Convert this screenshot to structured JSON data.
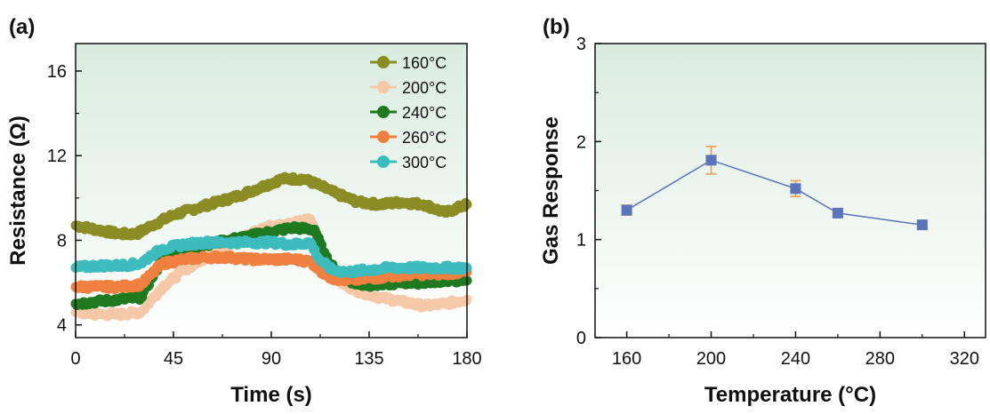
{
  "chart_data": [
    {
      "panel_label": "(a)",
      "type": "line",
      "title": "",
      "xlabel": "Time (s)",
      "ylabel": "Resistance (Ω)",
      "xlim": [
        0,
        180
      ],
      "ylim": [
        3.4,
        17.3
      ],
      "xticks": [
        "0",
        "45",
        "90",
        "135",
        "180"
      ],
      "yticks": [
        "4",
        "8",
        "12",
        "16"
      ],
      "legend_position": "top-right",
      "background": "gradient-green-to-white",
      "series": [
        {
          "name": "160°C",
          "color": "#8b8c24",
          "x": [
            0,
            10,
            20,
            28,
            35,
            45,
            55,
            65,
            75,
            85,
            95,
            105,
            112,
            120,
            130,
            140,
            150,
            160,
            170,
            180
          ],
          "values": [
            8.7,
            8.5,
            8.3,
            8.3,
            8.7,
            9.2,
            9.5,
            9.8,
            10.1,
            10.5,
            10.9,
            10.9,
            10.6,
            10.2,
            9.8,
            9.7,
            9.8,
            9.7,
            9.3,
            9.7
          ]
        },
        {
          "name": "200°C",
          "color": "#f5c9a8",
          "x": [
            0,
            10,
            20,
            30,
            35,
            40,
            50,
            60,
            70,
            80,
            90,
            100,
            108,
            115,
            122,
            130,
            140,
            150,
            160,
            170,
            180
          ],
          "values": [
            4.6,
            4.5,
            4.5,
            4.6,
            5.2,
            5.8,
            6.6,
            7.2,
            7.8,
            8.3,
            8.7,
            8.8,
            9.0,
            7.2,
            6.0,
            5.6,
            5.3,
            5.1,
            4.9,
            5.0,
            5.2
          ]
        },
        {
          "name": "240°C",
          "color": "#1f7a1f",
          "x": [
            0,
            10,
            20,
            30,
            35,
            40,
            50,
            60,
            70,
            80,
            90,
            100,
            110,
            115,
            122,
            130,
            140,
            150,
            160,
            170,
            180
          ],
          "values": [
            5.0,
            5.1,
            5.2,
            5.3,
            6.2,
            7.1,
            7.5,
            7.8,
            8.0,
            8.2,
            8.4,
            8.6,
            8.5,
            7.2,
            6.3,
            5.9,
            5.9,
            6.0,
            6.0,
            6.1,
            6.1
          ]
        },
        {
          "name": "260°C",
          "color": "#f08040",
          "x": [
            0,
            10,
            20,
            30,
            35,
            40,
            50,
            60,
            70,
            80,
            90,
            100,
            108,
            112,
            118,
            125,
            135,
            145,
            155,
            165,
            180
          ],
          "values": [
            5.8,
            5.8,
            5.8,
            5.9,
            6.4,
            6.9,
            7.1,
            7.2,
            7.2,
            7.1,
            7.1,
            7.1,
            7.0,
            6.6,
            6.2,
            6.1,
            6.2,
            6.3,
            6.4,
            6.4,
            6.5
          ]
        },
        {
          "name": "300°C",
          "color": "#3cbcbc",
          "x": [
            0,
            10,
            20,
            30,
            35,
            40,
            50,
            60,
            70,
            80,
            90,
            100,
            108,
            112,
            118,
            125,
            135,
            145,
            155,
            165,
            180
          ],
          "values": [
            6.7,
            6.8,
            6.8,
            6.9,
            7.3,
            7.6,
            7.8,
            7.9,
            7.9,
            7.9,
            7.9,
            7.8,
            7.9,
            7.1,
            6.6,
            6.5,
            6.6,
            6.7,
            6.7,
            6.7,
            6.7
          ]
        }
      ]
    },
    {
      "panel_label": "(b)",
      "type": "line",
      "title": "",
      "xlabel": "Temperature (°C)",
      "ylabel": "Gas Response",
      "xlim": [
        145,
        330
      ],
      "ylim": [
        0,
        3
      ],
      "xticks": [
        "160",
        "200",
        "240",
        "280",
        "320"
      ],
      "yticks": [
        "0",
        "1",
        "2",
        "3"
      ],
      "background": "gradient-green-to-white",
      "series": [
        {
          "name": "",
          "color": "#5b73b8",
          "errorbar_color": "#f0a060",
          "x": [
            160,
            200,
            240,
            260,
            300
          ],
          "values": [
            1.3,
            1.81,
            1.52,
            1.27,
            1.15
          ],
          "errors": [
            0.05,
            0.14,
            0.08,
            0.03,
            0.04
          ]
        }
      ]
    }
  ]
}
